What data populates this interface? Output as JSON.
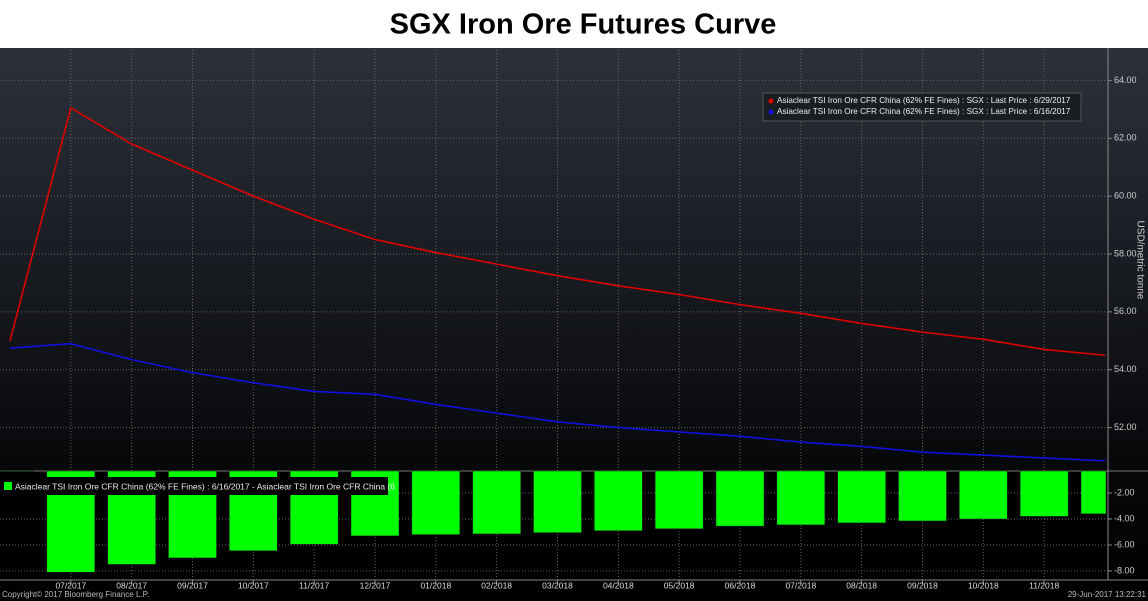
{
  "chart_data": [
    {
      "type": "line",
      "title": "SGX Iron Ore Futures Curve",
      "y_label": "USD/metric tonne",
      "series": [
        {
          "name": "Asiaclear TSI Iron Ore CFR China (62% FE Fines) : SGX : Last Price : 6/29/2017",
          "color": "#e00000",
          "values": [
            55.0,
            63.05,
            61.8,
            60.9,
            60.0,
            59.2,
            58.5,
            58.05,
            57.65,
            57.25,
            56.9,
            56.6,
            56.25,
            55.95,
            55.6,
            55.3,
            55.05,
            54.7,
            54.5
          ]
        },
        {
          "name": "Asiaclear TSI Iron Ore CFR China (62% FE Fines) : SGX : Last Price : 6/16/2017",
          "color": "#1010e0",
          "values": [
            54.75,
            54.9,
            54.35,
            53.9,
            53.55,
            53.25,
            53.15,
            52.8,
            52.5,
            52.2,
            52.0,
            51.85,
            51.7,
            51.5,
            51.35,
            51.15,
            51.05,
            50.95,
            50.85
          ]
        }
      ],
      "ylim": [
        50.5,
        65.05
      ],
      "yticks": [
        {
          "value": 52,
          "label": "52.00"
        },
        {
          "value": 54,
          "label": "54.00"
        },
        {
          "value": 56,
          "label": "56.00"
        },
        {
          "value": 58,
          "label": "58.00"
        },
        {
          "value": 60,
          "label": "60.00"
        },
        {
          "value": 62,
          "label": "62.00"
        },
        {
          "value": 64,
          "label": "64.00"
        }
      ],
      "grid": true,
      "legend": "upper-right"
    },
    {
      "type": "bar",
      "categories": [
        null,
        "07/2017",
        "08/2017",
        "09/2017",
        "10/2017",
        "11/2017",
        "12/2017",
        "01/2018",
        "02/2018",
        "03/2018",
        "04/2018",
        "05/2018",
        "06/2018",
        "07/2018",
        "08/2018",
        "09/2018",
        "10/2018",
        "11/2018",
        null
      ],
      "series": [
        {
          "name": "Asiaclear TSI Iron Ore CFR China (62% FE Fines) : 6/16/2017 - Asiaclear TSI Iron Ore CFR China (6",
          "color": "#00ff00",
          "values": [
            -0.25,
            -8.1,
            -7.5,
            -7.0,
            -6.45,
            -5.95,
            -5.3,
            -5.2,
            -5.15,
            -5.05,
            -4.9,
            -4.75,
            -4.55,
            -4.45,
            -4.3,
            -4.15,
            -4.0,
            -3.8,
            -3.6
          ]
        }
      ],
      "ylim": [
        -8.7,
        -0.3
      ],
      "yticks": [
        {
          "value": -8,
          "label": "-8.00"
        },
        {
          "value": -6,
          "label": "-6.00"
        },
        {
          "value": -4,
          "label": "-4.00"
        },
        {
          "value": -2,
          "label": "-2.00"
        }
      ],
      "grid": true,
      "legend": "upper-left"
    }
  ],
  "footer": {
    "copyright": "Copyright© 2017 Bloomberg Finance L.P.",
    "timestamp": "29-Jun-2017 13:22:31"
  }
}
